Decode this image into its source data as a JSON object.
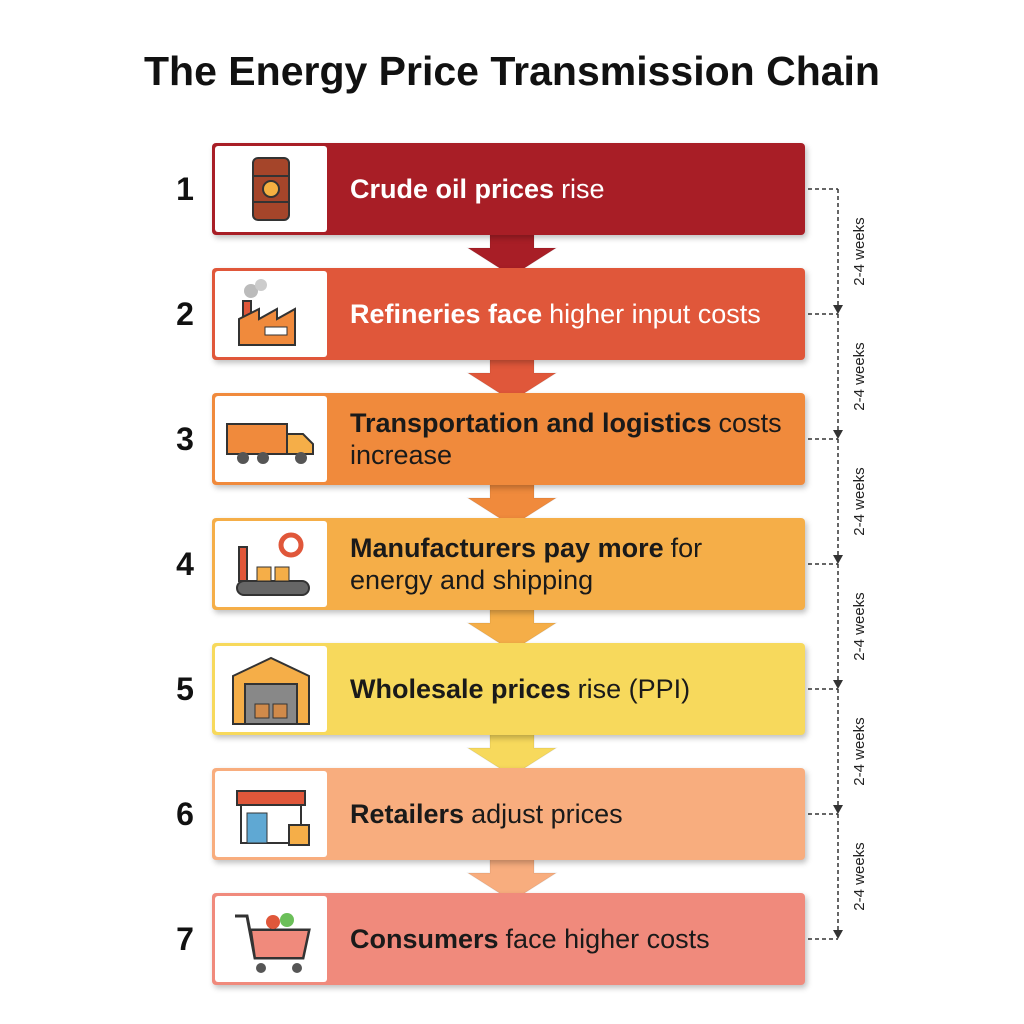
{
  "title": "The Energy Price Transmission Chain",
  "steps": [
    {
      "number": "1",
      "bold": "Crude oil prices",
      "text": "rise"
    },
    {
      "number": "2",
      "bold": "Refineries face",
      "text": "higher input costs"
    },
    {
      "number": "3",
      "bold": "Transportation and logistics",
      "text": "costs increase"
    },
    {
      "number": "4",
      "bold": "Manufacturers pay more",
      "text": "for energy and shipping"
    },
    {
      "number": "5",
      "bold": "Wholesale prices",
      "text": "rise (PPI)"
    },
    {
      "number": "6",
      "bold": "Retailers",
      "text": "adjust prices"
    },
    {
      "number": "7",
      "bold": "Consumers",
      "text": "face higher costs"
    }
  ],
  "intervals": [
    "2-4 weeks",
    "2-4 weeks",
    "2-4 weeks",
    "2-4 weeks",
    "2-4 weeks",
    "2-4 weeks"
  ]
}
